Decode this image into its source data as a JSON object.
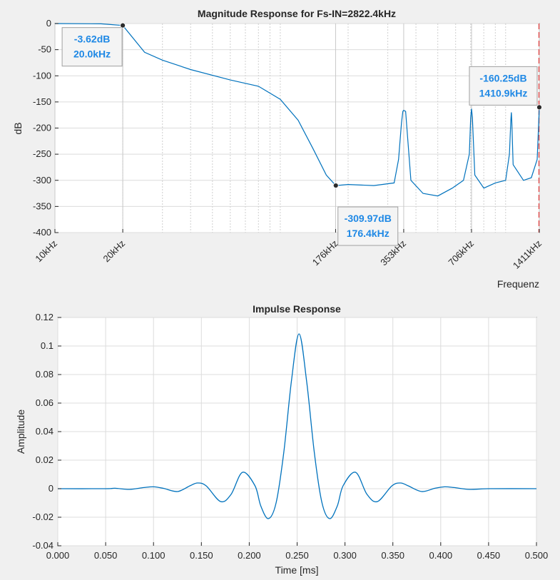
{
  "chart_data": [
    {
      "type": "line",
      "title": "Magnitude Response for Fs-IN=2822.4kHz",
      "xlabel": "Frequenz",
      "ylabel": "dB",
      "xscale": "log",
      "xlim": [
        10,
        1411
      ],
      "ylim": [
        -400,
        0
      ],
      "xtick_values": [
        10,
        20,
        176,
        353,
        706,
        1411
      ],
      "xtick_labels": [
        "10kHz",
        "20kHz",
        "176kHz",
        "353kHz",
        "706kHz",
        "1411kHz"
      ],
      "yticks": [
        0,
        -50,
        -100,
        -150,
        -200,
        -250,
        -300,
        -350,
        -400
      ],
      "grid": true,
      "series_color": "#0072bd",
      "x_unit": "kHz",
      "x": [
        10,
        16,
        20,
        25,
        30,
        40,
        60,
        80,
        100,
        120,
        140,
        160,
        176.4,
        200,
        260,
        320,
        335,
        345,
        350,
        353,
        360,
        380,
        430,
        500,
        580,
        650,
        690,
        700,
        706,
        712,
        730,
        800,
        900,
        1000,
        1040,
        1055,
        1060,
        1065,
        1080,
        1200,
        1300,
        1380,
        1410.9
      ],
      "y": [
        0,
        -0.5,
        -3.62,
        -55,
        -70,
        -88,
        -108,
        -120,
        -145,
        -185,
        -240,
        -290,
        -309.97,
        -308,
        -310,
        -305,
        -260,
        -190,
        -168,
        -166,
        -168,
        -300,
        -325,
        -330,
        -315,
        -300,
        -250,
        -180,
        -163,
        -180,
        -290,
        -315,
        -305,
        -300,
        -250,
        -185,
        -170,
        -185,
        -270,
        -300,
        -295,
        -260,
        -160.25
      ],
      "datatips": [
        {
          "x": "20.0kHz",
          "y": "-3.62dB"
        },
        {
          "x": "176.4kHz",
          "y": "-309.97dB"
        },
        {
          "x": "1410.9kHz",
          "y": "-160.25dB"
        }
      ],
      "marker_line_x": 1411,
      "marker_line_color": "#e05050"
    },
    {
      "type": "line",
      "title": "Impulse Response",
      "xlabel": "Time [ms]",
      "ylabel": "Amplitude",
      "xlim": [
        0,
        0.5
      ],
      "ylim": [
        -0.04,
        0.12
      ],
      "xticks": [
        "0.000",
        "0.050",
        "0.100",
        "0.150",
        "0.200",
        "0.250",
        "0.300",
        "0.350",
        "0.400",
        "0.450",
        "0.500"
      ],
      "yticks": [
        "-0.04",
        "-0.02",
        "0",
        "0.02",
        "0.04",
        "0.06",
        "0.08",
        "0.1",
        "0.12"
      ],
      "grid": true,
      "series_color": "#0072bd",
      "x": [
        0.0,
        0.05,
        0.06,
        0.075,
        0.09,
        0.1,
        0.11,
        0.125,
        0.138,
        0.146,
        0.155,
        0.17,
        0.181,
        0.193,
        0.206,
        0.212,
        0.22,
        0.228,
        0.236,
        0.244,
        0.252,
        0.26,
        0.268,
        0.276,
        0.284,
        0.292,
        0.298,
        0.311,
        0.323,
        0.334,
        0.349,
        0.358,
        0.366,
        0.38,
        0.394,
        0.404,
        0.414,
        0.43,
        0.45,
        0.5
      ],
      "y": [
        0.0,
        0.0,
        0.0003,
        -0.0005,
        0.0008,
        0.0013,
        0.0003,
        -0.002,
        0.002,
        0.004,
        0.002,
        -0.009,
        -0.004,
        0.0115,
        0.002,
        -0.012,
        -0.021,
        -0.01,
        0.025,
        0.075,
        0.1085,
        0.075,
        0.025,
        -0.01,
        -0.021,
        -0.012,
        0.002,
        0.0115,
        -0.004,
        -0.009,
        0.002,
        0.004,
        0.002,
        -0.002,
        0.0003,
        0.0013,
        0.0008,
        -0.0005,
        0.0,
        0.0
      ]
    }
  ]
}
